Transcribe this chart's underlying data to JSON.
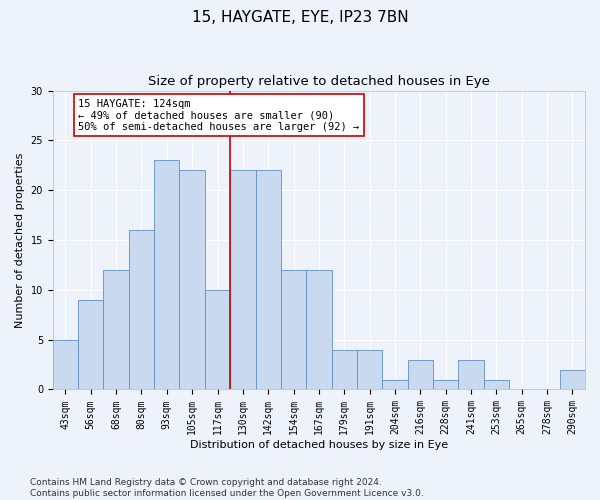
{
  "title1": "15, HAYGATE, EYE, IP23 7BN",
  "title2": "Size of property relative to detached houses in Eye",
  "xlabel": "Distribution of detached houses by size in Eye",
  "ylabel": "Number of detached properties",
  "bar_labels": [
    "43sqm",
    "56sqm",
    "68sqm",
    "80sqm",
    "93sqm",
    "105sqm",
    "117sqm",
    "130sqm",
    "142sqm",
    "154sqm",
    "167sqm",
    "179sqm",
    "191sqm",
    "204sqm",
    "216sqm",
    "228sqm",
    "241sqm",
    "253sqm",
    "265sqm",
    "278sqm",
    "290sqm"
  ],
  "bar_values": [
    5,
    9,
    12,
    16,
    23,
    22,
    10,
    22,
    22,
    12,
    12,
    4,
    4,
    1,
    3,
    1,
    3,
    1,
    0,
    0,
    2
  ],
  "bar_color": "#c9d9f0",
  "bar_edge_color": "#6090c8",
  "bar_edge_width": 0.6,
  "red_line_x": 6.5,
  "red_line_color": "#cc0000",
  "annotation_text": "15 HAYGATE: 124sqm\n← 49% of detached houses are smaller (90)\n50% of semi-detached houses are larger (92) →",
  "annotation_box_edge_color": "#cc0000",
  "annotation_box_face_color": "#ffffff",
  "ylim": [
    0,
    30
  ],
  "yticks": [
    0,
    5,
    10,
    15,
    20,
    25,
    30
  ],
  "footer_text": "Contains HM Land Registry data © Crown copyright and database right 2024.\nContains public sector information licensed under the Open Government Licence v3.0.",
  "background_color": "#eef2fa",
  "grid_color": "#ffffff",
  "title1_fontsize": 11,
  "title2_fontsize": 9.5,
  "axis_label_fontsize": 8,
  "tick_fontsize": 7,
  "annotation_fontsize": 7.5,
  "footer_fontsize": 6.5
}
